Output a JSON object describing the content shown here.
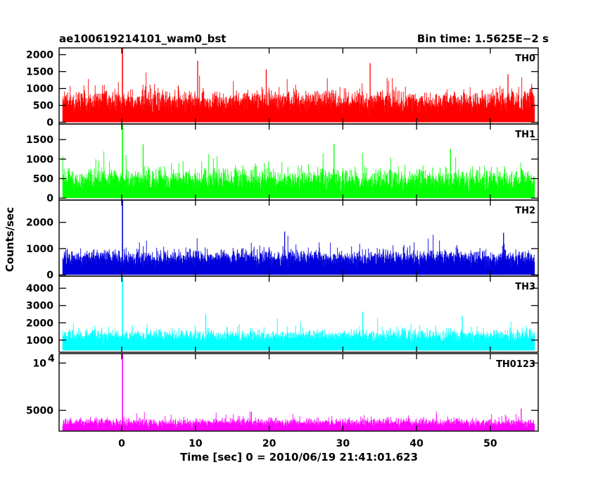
{
  "chart_data": {
    "type": "line",
    "title_left": "ae100619214101_wam0_bst",
    "title_right": "Bin time: 1.5625E−2 s",
    "xlabel": "Time [sec] 0 = 2010/06/19 21:41:01.623",
    "ylabel": "Counts/sec",
    "xlim": [
      -8.5,
      56.5
    ],
    "x_ticks": [
      0,
      10,
      20,
      30,
      40,
      50
    ],
    "data_x_range": [
      -8,
      56
    ],
    "grid": false,
    "panels": [
      {
        "name": "TH0",
        "color": "#ff0000",
        "ylim": [
          -50,
          2200
        ],
        "y_ticks": [
          {
            "v": 0,
            "t": "0"
          },
          {
            "v": 500,
            "t": "500"
          },
          {
            "v": 1000,
            "t": "1000"
          },
          {
            "v": 1500,
            "t": "1500"
          },
          {
            "v": 2000,
            "t": "2000"
          }
        ],
        "baseline": 0,
        "mean": 650,
        "spread": 360,
        "peak": {
          "x": 0.1,
          "y": 2200
        },
        "spikes": [
          {
            "x": 10.3,
            "y": 1820
          },
          {
            "x": 33.7,
            "y": 1750
          },
          {
            "x": 19.6,
            "y": 1560
          },
          {
            "x": 52.4,
            "y": 1420
          }
        ]
      },
      {
        "name": "TH1",
        "color": "#00ff00",
        "ylim": [
          -50,
          1900
        ],
        "y_ticks": [
          {
            "v": 0,
            "t": "0"
          },
          {
            "v": 500,
            "t": "500"
          },
          {
            "v": 1000,
            "t": "1000"
          },
          {
            "v": 1500,
            "t": "1500"
          }
        ],
        "baseline": 0,
        "mean": 480,
        "spread": 320,
        "peak": {
          "x": 0.1,
          "y": 1880
        },
        "spikes": [
          {
            "x": 2.9,
            "y": 1380
          },
          {
            "x": 28.8,
            "y": 1390
          },
          {
            "x": 44.6,
            "y": 1260
          }
        ]
      },
      {
        "name": "TH2",
        "color": "#0000dd",
        "ylim": [
          -50,
          2850
        ],
        "y_ticks": [
          {
            "v": 0,
            "t": "0"
          },
          {
            "v": 1000,
            "t": "1000"
          },
          {
            "v": 2000,
            "t": "2000"
          }
        ],
        "baseline": 0,
        "mean": 680,
        "spread": 330,
        "peak": {
          "x": 0.1,
          "y": 2850
        },
        "spikes": [
          {
            "x": 22.1,
            "y": 1650
          },
          {
            "x": 51.8,
            "y": 1600
          }
        ]
      },
      {
        "name": "TH3",
        "color": "#00ffff",
        "ylim": [
          300,
          4700
        ],
        "y_ticks": [
          {
            "v": 1000,
            "t": "1000"
          },
          {
            "v": 2000,
            "t": "2000"
          },
          {
            "v": 3000,
            "t": "3000"
          },
          {
            "v": 4000,
            "t": "4000"
          }
        ],
        "baseline": 400,
        "mean": 1250,
        "spread": 420,
        "peak": {
          "x": 0.1,
          "y": 4650
        },
        "spikes": [
          {
            "x": 32.7,
            "y": 2650
          },
          {
            "x": 11.4,
            "y": 2500
          },
          {
            "x": 46.2,
            "y": 2400
          }
        ]
      },
      {
        "name": "TH0123",
        "color": "#ff00ff",
        "ylim": [
          2800,
          11000
        ],
        "y_ticks": [
          {
            "v": 5000,
            "t": "5000"
          },
          {
            "v": 10000,
            "t": "10",
            "sup": "4"
          }
        ],
        "baseline": 2800,
        "mean": 3700,
        "spread": 520,
        "peak": {
          "x": 0.1,
          "y": 11000
        },
        "spikes": [
          {
            "x": 54.2,
            "y": 5200
          },
          {
            "x": 17.6,
            "y": 4850
          }
        ]
      }
    ]
  }
}
